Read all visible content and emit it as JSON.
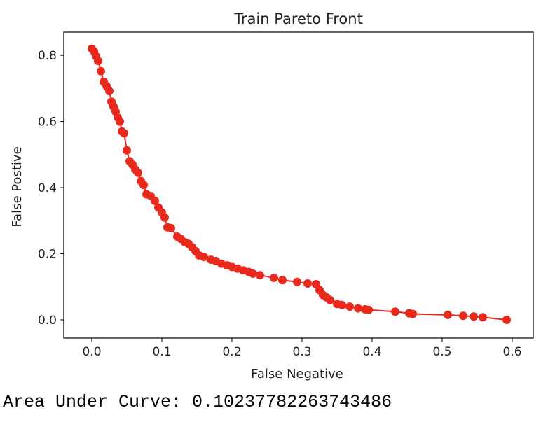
{
  "chart_data": {
    "type": "line",
    "title": "Train Pareto Front",
    "xlabel": "False Negative",
    "ylabel": "False Postive",
    "xlim": [
      -0.04,
      0.63
    ],
    "ylim": [
      -0.055,
      0.87
    ],
    "xticks": [
      "0.0",
      "0.1",
      "0.2",
      "0.3",
      "0.4",
      "0.5",
      "0.6"
    ],
    "xtick_values": [
      0.0,
      0.1,
      0.2,
      0.3,
      0.4,
      0.5,
      0.6
    ],
    "yticks": [
      "0.0",
      "0.2",
      "0.4",
      "0.6",
      "0.8"
    ],
    "ytick_values": [
      0.0,
      0.2,
      0.4,
      0.6,
      0.8
    ],
    "grid": false,
    "color": "#e8291c",
    "series": [
      {
        "x": [
          0.0,
          0.003,
          0.006,
          0.009,
          0.013,
          0.017,
          0.021,
          0.025,
          0.028,
          0.031,
          0.034,
          0.037,
          0.04,
          0.043,
          0.046,
          0.05,
          0.054,
          0.058,
          0.062,
          0.066,
          0.07,
          0.074,
          0.078,
          0.084,
          0.09,
          0.095,
          0.1,
          0.104,
          0.108,
          0.113,
          0.122,
          0.127,
          0.133,
          0.138,
          0.143,
          0.148,
          0.153,
          0.16,
          0.17,
          0.177,
          0.185,
          0.193,
          0.2,
          0.208,
          0.216,
          0.224,
          0.23,
          0.24,
          0.26,
          0.272,
          0.293,
          0.308,
          0.32,
          0.325,
          0.33,
          0.335,
          0.34,
          0.35,
          0.357,
          0.368,
          0.38,
          0.39,
          0.395,
          0.433,
          0.453,
          0.458,
          0.508,
          0.53,
          0.545,
          0.558,
          0.592
        ],
        "y": [
          0.82,
          0.812,
          0.797,
          0.783,
          0.752,
          0.72,
          0.707,
          0.692,
          0.66,
          0.645,
          0.63,
          0.612,
          0.6,
          0.57,
          0.565,
          0.513,
          0.48,
          0.47,
          0.455,
          0.445,
          0.42,
          0.408,
          0.38,
          0.375,
          0.36,
          0.34,
          0.325,
          0.31,
          0.28,
          0.278,
          0.252,
          0.245,
          0.235,
          0.23,
          0.22,
          0.208,
          0.195,
          0.19,
          0.182,
          0.178,
          0.17,
          0.165,
          0.16,
          0.155,
          0.15,
          0.145,
          0.14,
          0.135,
          0.127,
          0.12,
          0.115,
          0.11,
          0.108,
          0.09,
          0.075,
          0.068,
          0.06,
          0.048,
          0.045,
          0.04,
          0.035,
          0.032,
          0.03,
          0.025,
          0.02,
          0.018,
          0.015,
          0.012,
          0.01,
          0.008,
          0.0
        ]
      }
    ]
  },
  "footer": {
    "auc_text": "Area Under Curve: 0.10237782263743486"
  }
}
